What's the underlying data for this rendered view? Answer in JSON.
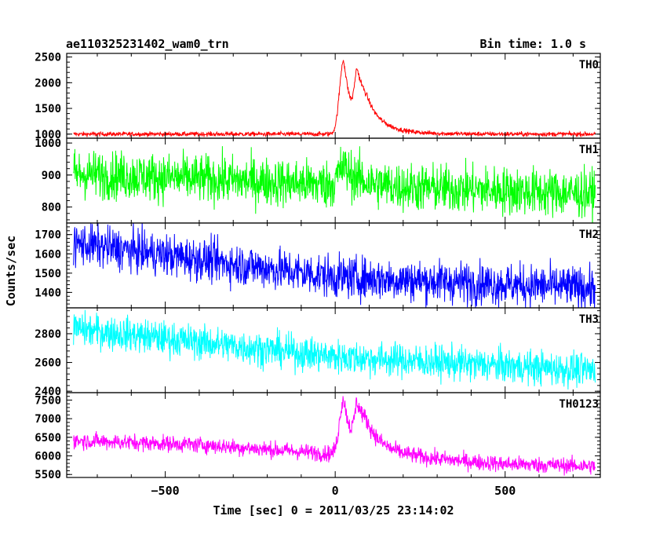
{
  "chart_data": {
    "type": "line",
    "title": "ae110325231402_wam0_trn",
    "bin_time_label": "Bin time: 1.0 s",
    "xlabel": "Time [sec] 0 = 2011/03/25 23:14:02",
    "ylabel": "Counts/sec",
    "xlim": [
      -790,
      780
    ],
    "x_ticks": [
      -500,
      0,
      500
    ],
    "x_tick_labels": [
      "−500",
      "0",
      "500"
    ],
    "panels": [
      {
        "name": "TH0",
        "color": "#ff0000",
        "ylim": [
          920,
          2570
        ],
        "y_ticks": [
          1000,
          1500,
          2000,
          2500
        ],
        "y_tick_labels": [
          "1000",
          "1500",
          "2000",
          "2500"
        ],
        "baseline": [
          [
            -790,
            1000
          ],
          [
            780,
            1000
          ]
        ],
        "noise": 22,
        "bursts": [
          {
            "center": 25,
            "peak": 1450,
            "rise": 12,
            "decay": 25
          },
          {
            "center": 65,
            "peak": 900,
            "rise": 8,
            "decay": 35
          },
          {
            "center": 95,
            "peak": 250,
            "rise": 20,
            "decay": 70
          }
        ]
      },
      {
        "name": "TH1",
        "color": "#00ff00",
        "ylim": [
          750,
          1015
        ],
        "y_ticks": [
          800,
          900,
          1000
        ],
        "y_tick_labels": [
          "800",
          "900",
          "1000"
        ],
        "baseline": [
          [
            -790,
            905
          ],
          [
            0,
            870
          ],
          [
            780,
            840
          ]
        ],
        "noise": 38,
        "bursts": [
          {
            "center": 25,
            "peak": 55,
            "rise": 15,
            "decay": 45
          }
        ]
      },
      {
        "name": "TH2",
        "color": "#0000ff",
        "ylim": [
          1320,
          1760
        ],
        "y_ticks": [
          1400,
          1500,
          1600,
          1700
        ],
        "y_tick_labels": [
          "1400",
          "1500",
          "1600",
          "1700"
        ],
        "baseline": [
          [
            -790,
            1660
          ],
          [
            0,
            1480
          ],
          [
            780,
            1420
          ]
        ],
        "noise": 55,
        "bursts": []
      },
      {
        "name": "TH3",
        "color": "#00ffff",
        "ylim": [
          2390,
          2980
        ],
        "y_ticks": [
          2400,
          2600,
          2800
        ],
        "y_tick_labels": [
          "2400",
          "2600",
          "2800"
        ],
        "baseline": [
          [
            -790,
            2840
          ],
          [
            0,
            2640
          ],
          [
            780,
            2540
          ]
        ],
        "noise": 60,
        "bursts": []
      },
      {
        "name": "TH0123",
        "color": "#ff00ff",
        "ylim": [
          5420,
          7700
        ],
        "y_ticks": [
          5500,
          6000,
          6500,
          7000,
          7500
        ],
        "y_tick_labels": [
          "5500",
          "6000",
          "6500",
          "7000",
          "7500"
        ],
        "baseline": [
          [
            -790,
            6420
          ],
          [
            -400,
            6300
          ],
          [
            0,
            6050
          ],
          [
            200,
            5950
          ],
          [
            500,
            5780
          ],
          [
            780,
            5720
          ]
        ],
        "noise": 110,
        "bursts": [
          {
            "center": 25,
            "peak": 1500,
            "rise": 12,
            "decay": 25
          },
          {
            "center": 65,
            "peak": 1000,
            "rise": 8,
            "decay": 35
          },
          {
            "center": 95,
            "peak": 400,
            "rise": 20,
            "decay": 80
          }
        ]
      }
    ]
  }
}
